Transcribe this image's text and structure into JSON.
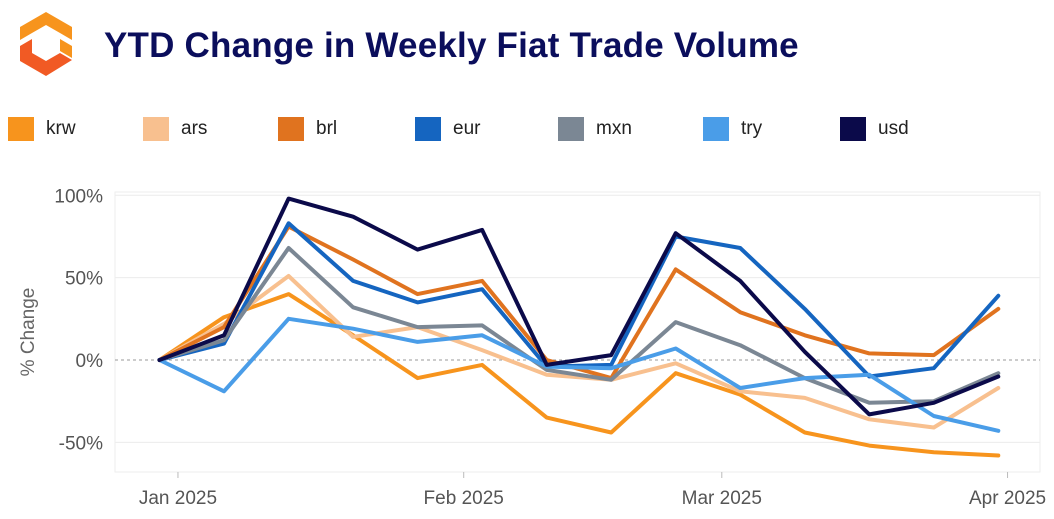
{
  "title": "YTD Change in Weekly Fiat Trade Volume",
  "logo": {
    "icon": "exchange-logo-icon",
    "colors": [
      "#f7941d",
      "#f15a24"
    ]
  },
  "legend": [
    {
      "label": "krw",
      "color": "#f7941d"
    },
    {
      "label": "ars",
      "color": "#f8c08f"
    },
    {
      "label": "brl",
      "color": "#e0731f"
    },
    {
      "label": "eur",
      "color": "#1565c0"
    },
    {
      "label": "mxn",
      "color": "#7b8794"
    },
    {
      "label": "try",
      "color": "#4a9de8"
    },
    {
      "label": "usd",
      "color": "#0b0a4a"
    }
  ],
  "chart_data": {
    "type": "line",
    "ylabel": "% Change",
    "ylim": [
      -68,
      102
    ],
    "yticks": [
      100,
      50,
      0,
      -50
    ],
    "ytick_labels": [
      "100%",
      "50%",
      "0%",
      "-50%"
    ],
    "xticks": [
      "Jan 2025",
      "Feb 2025",
      "Mar 2025",
      "Apr 2025"
    ],
    "xtick_dates": [
      "2025-01-01",
      "2025-02-01",
      "2025-03-01",
      "2025-04-01"
    ],
    "x": [
      "2024-12-30",
      "2025-01-06",
      "2025-01-13",
      "2025-01-20",
      "2025-01-27",
      "2025-02-03",
      "2025-02-10",
      "2025-02-17",
      "2025-02-24",
      "2025-03-03",
      "2025-03-10",
      "2025-03-17",
      "2025-03-24",
      "2025-03-31"
    ],
    "zero_line": true,
    "grid": true,
    "series": [
      {
        "name": "krw",
        "color": "#f7941d",
        "values": [
          0,
          26,
          40,
          15,
          -11,
          -3,
          -35,
          -44,
          -8,
          -21,
          -44,
          -52,
          -56,
          -58
        ]
      },
      {
        "name": "ars",
        "color": "#f8c08f",
        "values": [
          0,
          22,
          51,
          14,
          20,
          6,
          -9,
          -12,
          -2,
          -19,
          -23,
          -36,
          -41,
          -17
        ]
      },
      {
        "name": "brl",
        "color": "#e0731f",
        "values": [
          0,
          20,
          81,
          61,
          40,
          48,
          0,
          -11,
          55,
          29,
          15,
          4,
          3,
          31
        ]
      },
      {
        "name": "eur",
        "color": "#1565c0",
        "values": [
          0,
          10,
          83,
          48,
          35,
          43,
          -4,
          -3,
          75,
          68,
          31,
          -10,
          -5,
          39
        ]
      },
      {
        "name": "mxn",
        "color": "#7b8794",
        "values": [
          0,
          12,
          68,
          32,
          20,
          21,
          -6,
          -12,
          23,
          9,
          -11,
          -26,
          -25,
          -8
        ]
      },
      {
        "name": "try",
        "color": "#4a9de8",
        "values": [
          0,
          -19,
          25,
          19,
          11,
          15,
          -4,
          -5,
          7,
          -17,
          -11,
          -9,
          -34,
          -43
        ]
      },
      {
        "name": "usd",
        "color": "#0b0a4a",
        "values": [
          0,
          15,
          98,
          87,
          67,
          79,
          -3,
          3,
          77,
          48,
          5,
          -33,
          -26,
          -10
        ]
      }
    ]
  }
}
